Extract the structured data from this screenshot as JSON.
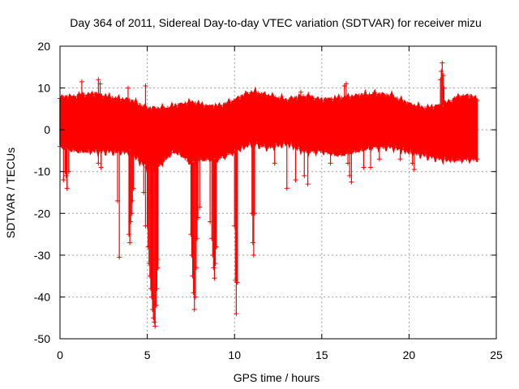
{
  "chart_data": {
    "type": "scatter",
    "title": "Day 364 of 2011, Sidereal Day-to-day VTEC variation (SDTVAR) for receiver mizu",
    "xlabel": "GPS time / hours",
    "ylabel": "SDTVAR / TECUs",
    "xlim": [
      0,
      25
    ],
    "ylim": [
      -50,
      20
    ],
    "xticks": [
      0,
      5,
      10,
      15,
      20,
      25
    ],
    "yticks": [
      -50,
      -40,
      -30,
      -20,
      -10,
      0,
      10,
      20
    ],
    "grid": true,
    "series": [
      {
        "name": "SDTVAR",
        "color": "#ff0000",
        "marker": "+",
        "x_range": [
          0,
          23.9
        ],
        "envelope": {
          "x": [
            0,
            1,
            2,
            3,
            4,
            4.5,
            5,
            5.5,
            6,
            6.5,
            7,
            7.5,
            8,
            8.5,
            9,
            9.5,
            10,
            11,
            12,
            13,
            14,
            15,
            16,
            17,
            18,
            19,
            20,
            21,
            22,
            22.5,
            23,
            23.5,
            23.9
          ],
          "upper": [
            7.5,
            8,
            8.5,
            7.5,
            7,
            6,
            5,
            5,
            5,
            5.5,
            6,
            6.5,
            6,
            5.5,
            5.5,
            6,
            7,
            9,
            8,
            7,
            8,
            7,
            7.5,
            8,
            8.5,
            8,
            6,
            5,
            6,
            7,
            8,
            8,
            7
          ],
          "lower": [
            -4,
            -5,
            -5,
            -5,
            -5,
            -7,
            -9,
            -9,
            -7,
            -5,
            -6,
            -8,
            -7,
            -7,
            -7,
            -6,
            -5,
            -3,
            -4,
            -3,
            -5,
            -5,
            -6,
            -5,
            -4,
            -4,
            -5,
            -6,
            -7,
            -7,
            -7,
            -7,
            -7
          ]
        },
        "outliers": [
          [
            0.2,
            -12
          ],
          [
            0.3,
            -10
          ],
          [
            0.35,
            -11
          ],
          [
            0.5,
            -10
          ],
          [
            0.4,
            -14
          ],
          [
            1.25,
            11.5
          ],
          [
            2.2,
            12
          ],
          [
            2.3,
            11
          ],
          [
            2.2,
            -8
          ],
          [
            2.35,
            -9
          ],
          [
            3.3,
            -17
          ],
          [
            3.4,
            -30.5
          ],
          [
            3.9,
            10
          ],
          [
            3.95,
            -25
          ],
          [
            4.0,
            -27
          ],
          [
            4.05,
            -22
          ],
          [
            4.1,
            -20
          ],
          [
            4.15,
            -17
          ],
          [
            4.2,
            -14
          ],
          [
            4.9,
            10.5
          ],
          [
            4.8,
            -15
          ],
          [
            4.9,
            -23
          ],
          [
            5.0,
            -23
          ],
          [
            5.05,
            -28
          ],
          [
            5.1,
            -32
          ],
          [
            5.15,
            -35
          ],
          [
            5.2,
            -38
          ],
          [
            5.25,
            -40
          ],
          [
            5.3,
            -43
          ],
          [
            5.35,
            -45
          ],
          [
            5.4,
            -46
          ],
          [
            5.45,
            -47
          ],
          [
            5.5,
            -42
          ],
          [
            5.55,
            -38
          ],
          [
            5.6,
            -33
          ],
          [
            5.5,
            -31
          ],
          [
            5.6,
            -31
          ],
          [
            7.5,
            -25
          ],
          [
            7.55,
            -30
          ],
          [
            7.6,
            -35
          ],
          [
            7.65,
            -39
          ],
          [
            7.7,
            -43
          ],
          [
            7.75,
            -40
          ],
          [
            7.8,
            -33
          ],
          [
            7.85,
            -26
          ],
          [
            7.9,
            -21
          ],
          [
            8.0,
            -18.5
          ],
          [
            8.6,
            -22
          ],
          [
            8.7,
            -26
          ],
          [
            8.75,
            -30
          ],
          [
            8.8,
            -33
          ],
          [
            8.85,
            -35.5
          ],
          [
            8.9,
            -32
          ],
          [
            8.95,
            -28
          ],
          [
            10.0,
            -23
          ],
          [
            10.05,
            -36
          ],
          [
            10.1,
            -44
          ],
          [
            10.15,
            -36.5
          ],
          [
            11.0,
            -20
          ],
          [
            11.05,
            -27
          ],
          [
            11.1,
            -30
          ],
          [
            11.15,
            -20
          ],
          [
            12.3,
            -8
          ],
          [
            13.0,
            -14
          ],
          [
            13.5,
            -12
          ],
          [
            13.8,
            9
          ],
          [
            14.0,
            -11
          ],
          [
            14.2,
            -13
          ],
          [
            15.5,
            -8
          ],
          [
            16.3,
            10.5
          ],
          [
            16.4,
            11
          ],
          [
            16.5,
            -8
          ],
          [
            16.6,
            -11
          ],
          [
            16.7,
            -12.5
          ],
          [
            17.4,
            -9
          ],
          [
            17.8,
            -9
          ],
          [
            18.3,
            -7
          ],
          [
            19.5,
            -7
          ],
          [
            20.2,
            -8
          ],
          [
            20.3,
            -9.5
          ],
          [
            21.8,
            12
          ],
          [
            21.85,
            14
          ],
          [
            21.9,
            16
          ],
          [
            21.95,
            13
          ],
          [
            22.0,
            10
          ]
        ]
      }
    ]
  }
}
